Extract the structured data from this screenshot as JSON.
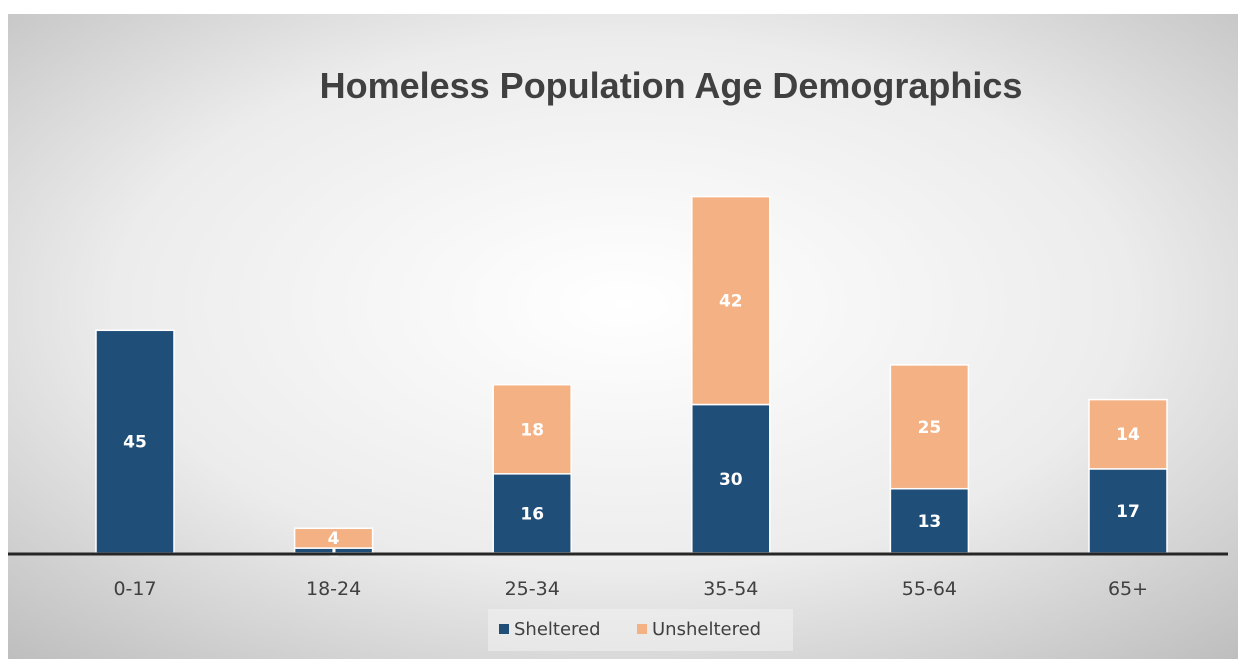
{
  "chart_data": {
    "type": "bar",
    "stacked": true,
    "title": "Homeless Population Age Demographics",
    "xlabel": "",
    "ylabel": "",
    "ylim": [
      0,
      80
    ],
    "grid": false,
    "legend_position": "bottom",
    "categories": [
      "0-17",
      "18-24",
      "25-34",
      "35-54",
      "55-64",
      "65+"
    ],
    "series": [
      {
        "name": "Sheltered",
        "values": [
          45,
          1,
          16,
          30,
          13,
          17
        ],
        "color": "#1f4e79"
      },
      {
        "name": "Unsheltered",
        "values": [
          0,
          4,
          18,
          42,
          25,
          14
        ],
        "color": "#f4b183"
      }
    ]
  }
}
